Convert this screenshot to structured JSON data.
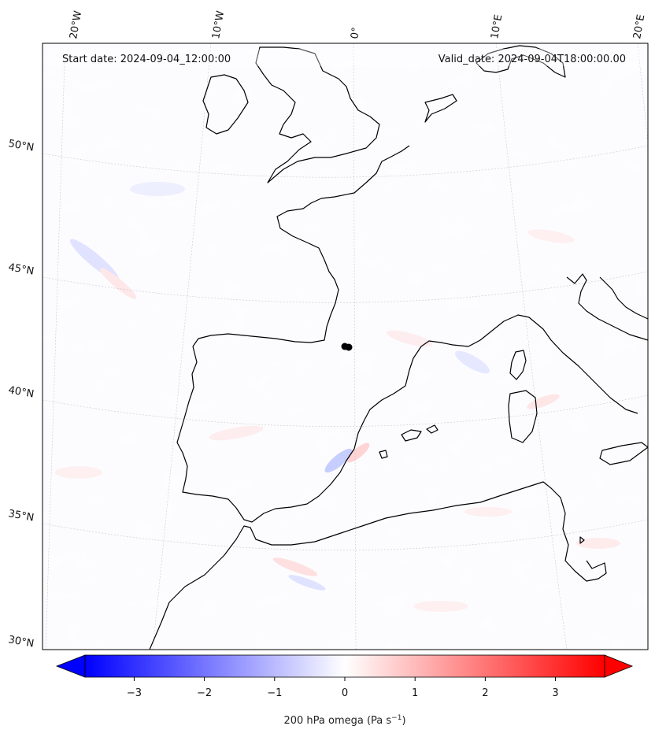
{
  "header": {
    "start_date": "Start date: 2024-09-04_12:00:00",
    "valid_date": "Valid_date: 2024-09-04T18:00:00.00"
  },
  "map": {
    "field": "200 hPa omega",
    "longitude_labels": [
      "20°W",
      "10°W",
      "0°",
      "10°E",
      "20°E"
    ],
    "latitude_labels": [
      "50°N",
      "45°N",
      "40°N",
      "35°N",
      "30°N"
    ],
    "marker": "location-marker"
  },
  "colorbar": {
    "label": "200 hPa omega (Pa s",
    "label_exponent": "−1",
    "label_close": ")",
    "ticks": [
      "−3",
      "−2",
      "−1",
      "0",
      "1",
      "2",
      "3"
    ],
    "colors": {
      "negative": "#0000ff",
      "zero": "#ffffff",
      "positive": "#ff0000"
    },
    "range": [
      -3.7,
      3.7
    ]
  }
}
